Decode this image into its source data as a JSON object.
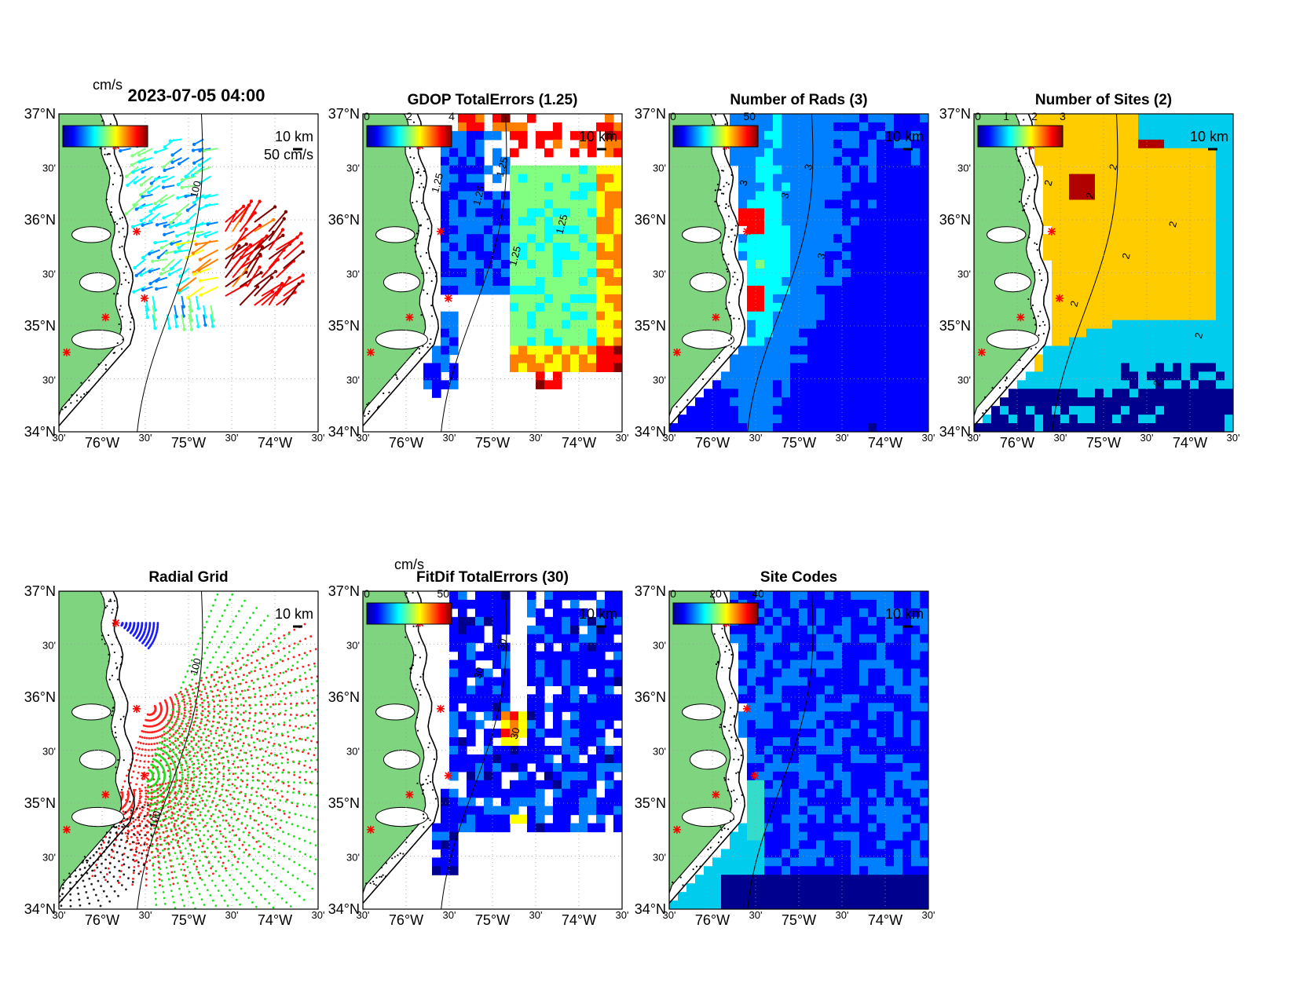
{
  "figure": {
    "timestamp": "2023-07-05 04:00",
    "units_label": "cm/s",
    "colormap": [
      "#00008f",
      "#0000ff",
      "#0080ff",
      "#00ffff",
      "#80ff80",
      "#ffff00",
      "#ff8000",
      "#ff0000",
      "#800000"
    ],
    "land_color": "#7fd47f",
    "site_marker_color": "#ff0000"
  },
  "axes": {
    "lat_labels": [
      "37°N",
      "30'",
      "36°N",
      "30'",
      "35°N",
      "30'",
      "34°N"
    ],
    "lon_labels": [
      "30'",
      "76°W",
      "30'",
      "75°W",
      "30'",
      "74°W",
      "30'"
    ]
  },
  "panels": [
    {
      "id": "total-vectors",
      "title": "",
      "colorbar_ticks": [],
      "scale_label": "10 km",
      "extra_label": "50 cm/s",
      "contour_labels": [
        "100"
      ]
    },
    {
      "id": "gdop",
      "title": "GDOP TotalErrors (1.25)",
      "colorbar_ticks": [
        "0",
        "2",
        "4"
      ],
      "scale_label": "10 km",
      "contour_labels": [
        "1.25",
        "1.25",
        "1.25",
        "1.25",
        "1.25"
      ]
    },
    {
      "id": "num-rads",
      "title": "Number of Rads (3)",
      "colorbar_ticks": [
        "0",
        "50"
      ],
      "scale_label": "10 km",
      "contour_labels": [
        "3",
        "3",
        "3",
        "3"
      ]
    },
    {
      "id": "num-sites",
      "title": "Number of Sites (2)",
      "colorbar_ticks": [
        "0",
        "1",
        "2",
        "3"
      ],
      "scale_label": "10 km",
      "contour_labels": [
        "2",
        "2",
        "2",
        "2",
        "2",
        "2",
        "2",
        "2"
      ]
    },
    {
      "id": "radial-grid",
      "title": "Radial Grid",
      "colorbar_ticks": [],
      "scale_label": "10 km",
      "contour_labels": [
        "100",
        "100"
      ]
    },
    {
      "id": "fitdif",
      "title": "FitDif TotalErrors (30)",
      "unit_label": "cm/s",
      "colorbar_ticks": [
        "0",
        "50"
      ],
      "scale_label": "10 km",
      "contour_labels": [
        "30",
        "30",
        "30"
      ]
    },
    {
      "id": "site-codes",
      "title": "Site Codes",
      "colorbar_ticks": [
        "0",
        "20",
        "40"
      ],
      "scale_label": "10 km",
      "contour_labels": []
    }
  ]
}
